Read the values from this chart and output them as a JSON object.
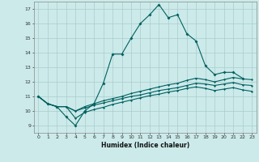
{
  "xlabel": "Humidex (Indice chaleur)",
  "background_color": "#cceaea",
  "grid_color": "#aacccc",
  "line_color": "#006060",
  "xlim": [
    -0.5,
    23.5
  ],
  "ylim": [
    8.5,
    17.5
  ],
  "xticks": [
    0,
    1,
    2,
    3,
    4,
    5,
    6,
    7,
    8,
    9,
    10,
    11,
    12,
    13,
    14,
    15,
    16,
    17,
    18,
    19,
    20,
    21,
    22,
    23
  ],
  "yticks": [
    9,
    10,
    11,
    12,
    13,
    14,
    15,
    16,
    17
  ],
  "line1_x": [
    0,
    1,
    2,
    3,
    4,
    5,
    6,
    7,
    8,
    9,
    10,
    11,
    12,
    13,
    14,
    15,
    16,
    17,
    18,
    19,
    20,
    21,
    22
  ],
  "line1_y": [
    11.0,
    10.5,
    10.3,
    9.6,
    9.0,
    10.0,
    10.5,
    11.9,
    13.9,
    13.9,
    15.0,
    16.0,
    16.6,
    17.3,
    16.4,
    16.6,
    15.3,
    14.8,
    13.1,
    12.5,
    12.65,
    12.65,
    12.25
  ],
  "line2_x": [
    0,
    1,
    2,
    3,
    4,
    5,
    6,
    7,
    8,
    9,
    10,
    11,
    12,
    13,
    14,
    15,
    16,
    17,
    18,
    19,
    20,
    21,
    22,
    23
  ],
  "line2_y": [
    11.0,
    10.5,
    10.3,
    10.3,
    10.0,
    10.3,
    10.5,
    10.7,
    10.85,
    11.0,
    11.2,
    11.35,
    11.5,
    11.65,
    11.8,
    11.9,
    12.1,
    12.25,
    12.15,
    12.0,
    12.15,
    12.3,
    12.2,
    12.15
  ],
  "line3_x": [
    0,
    1,
    2,
    3,
    4,
    5,
    6,
    7,
    8,
    9,
    10,
    11,
    12,
    13,
    14,
    15,
    16,
    17,
    18,
    19,
    20,
    21,
    22,
    23
  ],
  "line3_y": [
    11.0,
    10.5,
    10.3,
    10.3,
    10.0,
    10.2,
    10.4,
    10.55,
    10.7,
    10.85,
    11.0,
    11.1,
    11.25,
    11.4,
    11.5,
    11.6,
    11.75,
    11.9,
    11.85,
    11.75,
    11.85,
    11.95,
    11.8,
    11.75
  ],
  "line4_x": [
    0,
    1,
    2,
    3,
    4,
    5,
    6,
    7,
    8,
    9,
    10,
    11,
    12,
    13,
    14,
    15,
    16,
    17,
    18,
    19,
    20,
    21,
    22,
    23
  ],
  "line4_y": [
    11.0,
    10.5,
    10.3,
    10.3,
    9.5,
    9.9,
    10.1,
    10.25,
    10.45,
    10.6,
    10.75,
    10.9,
    11.05,
    11.15,
    11.3,
    11.4,
    11.55,
    11.65,
    11.55,
    11.4,
    11.5,
    11.6,
    11.45,
    11.35
  ]
}
